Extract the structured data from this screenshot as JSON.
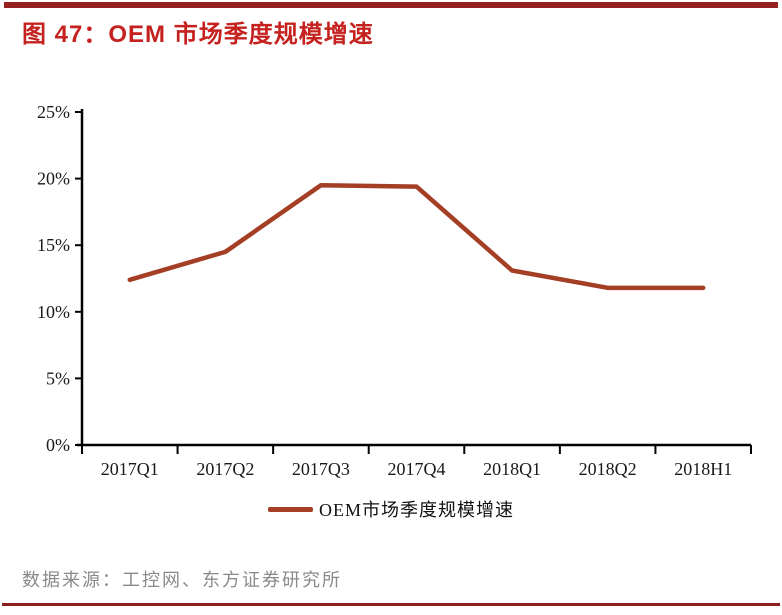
{
  "header": {
    "title": "图 47：OEM 市场季度规模增速",
    "title_color": "#C5211F",
    "top_rule_color": "#962121"
  },
  "chart_data": {
    "type": "line",
    "title": "图 47：OEM 市场季度规模增速",
    "categories": [
      "2017Q1",
      "2017Q2",
      "2017Q3",
      "2017Q4",
      "2018Q1",
      "2018Q2",
      "2018H1"
    ],
    "series": [
      {
        "name": "OEM市场季度规模增速",
        "values": [
          12.4,
          14.5,
          19.5,
          19.4,
          13.1,
          11.8,
          11.8
        ],
        "color": "#A43E24"
      }
    ],
    "xlabel": "",
    "ylabel": "",
    "ylim": [
      0,
      25
    ],
    "yticks": [
      0,
      5,
      10,
      15,
      20,
      25
    ],
    "ytick_suffix": "%",
    "grid": false,
    "legend_position": "bottom",
    "axis_color": "#000000"
  },
  "legend": {
    "label": "OEM市场季度规模增速",
    "swatch_color": "#A43E24"
  },
  "footer": {
    "source_text": "数据来源：工控网、东方证券研究所",
    "bottom_rule_color": "#8E1F1F"
  }
}
